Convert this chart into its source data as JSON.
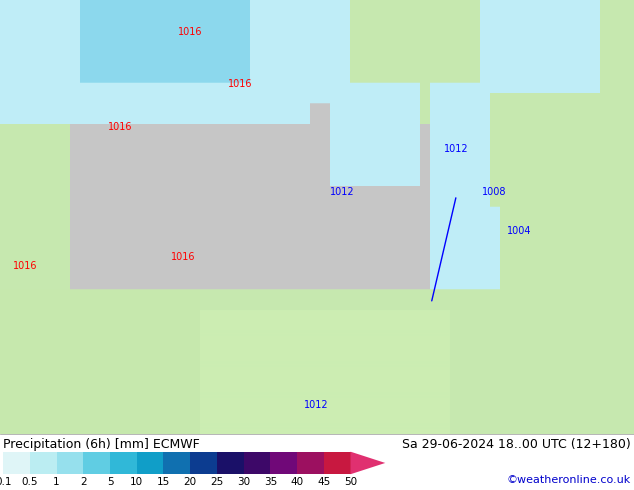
{
  "title_left": "Precipitation (6h) [mm] ECMWF",
  "title_right": "Sa 29-06-2024 18..00 UTC (12+180)",
  "credit": "©weatheronline.co.uk",
  "colorbar_values": [
    "0.1",
    "0.5",
    "1",
    "2",
    "5",
    "10",
    "15",
    "20",
    "25",
    "30",
    "35",
    "40",
    "45",
    "50"
  ],
  "colorbar_colors": [
    "#dff5f7",
    "#bbedf2",
    "#96e0ed",
    "#60cde3",
    "#30b8d8",
    "#109ec8",
    "#1070b0",
    "#0c3c90",
    "#1a1068",
    "#3d0868",
    "#700878",
    "#9c1060",
    "#c81840",
    "#e03070"
  ],
  "bg_color": "#ffffff",
  "text_color": "#000000",
  "credit_color": "#0000cc",
  "font_size_title": 9,
  "font_size_credit": 8,
  "font_size_ticks": 7.5,
  "map_colors": {
    "land_green": "#c8e8b0",
    "land_gray": "#c8c8c8",
    "sea_gray": "#b8b8b8",
    "precip_light": "#c0eef8",
    "precip_medium": "#80d8f0",
    "precip_dark": "#40b8e0"
  }
}
